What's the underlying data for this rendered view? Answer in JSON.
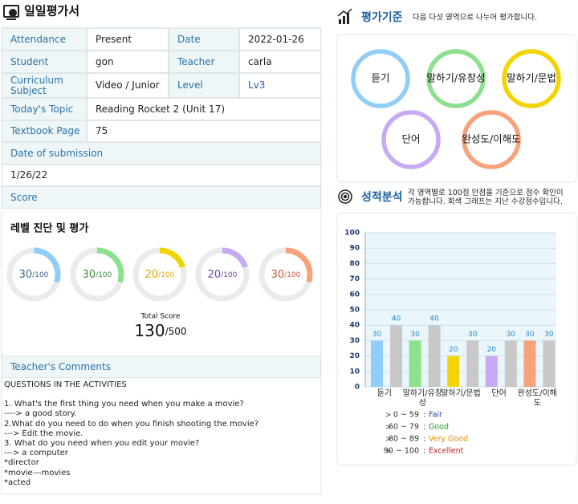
{
  "header": {
    "title": "일일평가서"
  },
  "info_table": {
    "rows": [
      [
        "Attendance",
        "Present",
        "Date",
        "2022-01-26"
      ],
      [
        "Student",
        "gon",
        "Teacher",
        "carla"
      ],
      [
        "Curriculum Subject",
        "Video / Junior",
        "Level",
        "Lv3"
      ],
      [
        "Today's Topic",
        "Reading Rocket 2 (Unit 17)"
      ],
      [
        "Textbook Page",
        "75"
      ]
    ]
  },
  "submission": {
    "label": "Date of submission",
    "value": "1/26/22"
  },
  "score": {
    "label": "Score",
    "subtitle": "레벨 진단 및 평가",
    "rings": [
      {
        "value": 30,
        "max": {
          "value": 100,
          "label": "/100"
        },
        "color": "#90cdf7",
        "text_color": "#3f6489"
      },
      {
        "value": 30,
        "max": {
          "value": 100,
          "label": "/100"
        },
        "color": "#8de08d",
        "text_color": "#3f8f3f"
      },
      {
        "value": 20,
        "max": {
          "value": 100,
          "label": "/100"
        },
        "color": "#f2d400",
        "text_color": "#e0a800"
      },
      {
        "value": 20,
        "max": {
          "value": 100,
          "label": "/100"
        },
        "color": "#c8aaf2",
        "text_color": "#6a45b0"
      },
      {
        "value": 30,
        "max": {
          "value": 100,
          "label": "/100"
        },
        "color": "#f7a27c",
        "text_color": "#c8583a"
      }
    ],
    "total_label": "Total Score",
    "total": {
      "value": 130,
      "max": {
        "value": 500,
        "label": "/500"
      }
    }
  },
  "comments": {
    "label": "Teacher's Comments",
    "lines": [
      "QUESTIONS IN THE ACTIVITIES",
      "1. What's the first thing you need when you make a movie?",
      "----> a good story.",
      "2.What do you need to do when you finish shooting the movie?",
      "---> Edit the movie.",
      "3. What do you need when you edit your movie?",
      "---> a computer",
      "*director",
      "*movie---movies",
      "*acted"
    ]
  },
  "criteria": {
    "title": "평가기준",
    "note": "다음 다섯 영역으로 나누어 평가합니다.",
    "items": [
      {
        "label": "듣기",
        "color": "#90cdf7"
      },
      {
        "label": "말하기/유창성",
        "color": "#8de08d"
      },
      {
        "label": "말하기/문법",
        "color": "#f2d400"
      },
      {
        "label": "단어",
        "color": "#c8aaf2"
      },
      {
        "label": "완성도/이해도",
        "color": "#f7a27c"
      }
    ]
  },
  "analysis": {
    "title": "성적분석",
    "note": "각 영역별로 100점 만점을 기준으로 점수 확인이 가능합니다. 회색 그래프는 지난 수강점수입니다.",
    "grades": [
      {
        "range": "0 ~ 59",
        "label": "Fair",
        "color": "#1a4fa0"
      },
      {
        "range": "60 ~ 79",
        "label": "Good",
        "color": "#2a9a2a"
      },
      {
        "range": "80 ~ 89",
        "label": "Very Good",
        "color": "#e08a00"
      },
      {
        "range": "90 ~ 100",
        "label": "Excellent",
        "color": "#c02020"
      }
    ]
  },
  "chart_data": {
    "type": "bar",
    "categories": [
      "듣기",
      "말하기/유창성",
      "말하기/문법",
      "단어",
      "완성도/이해도"
    ],
    "series": [
      {
        "colors": [
          "#90cdf7",
          "#8de08d",
          "#f2d400",
          "#c8aaf2",
          "#f7a27c"
        ],
        "values": [
          30,
          30,
          20,
          20,
          30
        ]
      },
      {
        "color": "#c8c8c8",
        "values": [
          40,
          40,
          30,
          30,
          30
        ]
      }
    ],
    "value_label_color": "#2a8ad0",
    "ylim": [
      0,
      100
    ],
    "yticks": [
      0,
      10,
      20,
      30,
      40,
      50,
      60,
      70,
      80,
      90,
      100
    ],
    "grid": true
  }
}
